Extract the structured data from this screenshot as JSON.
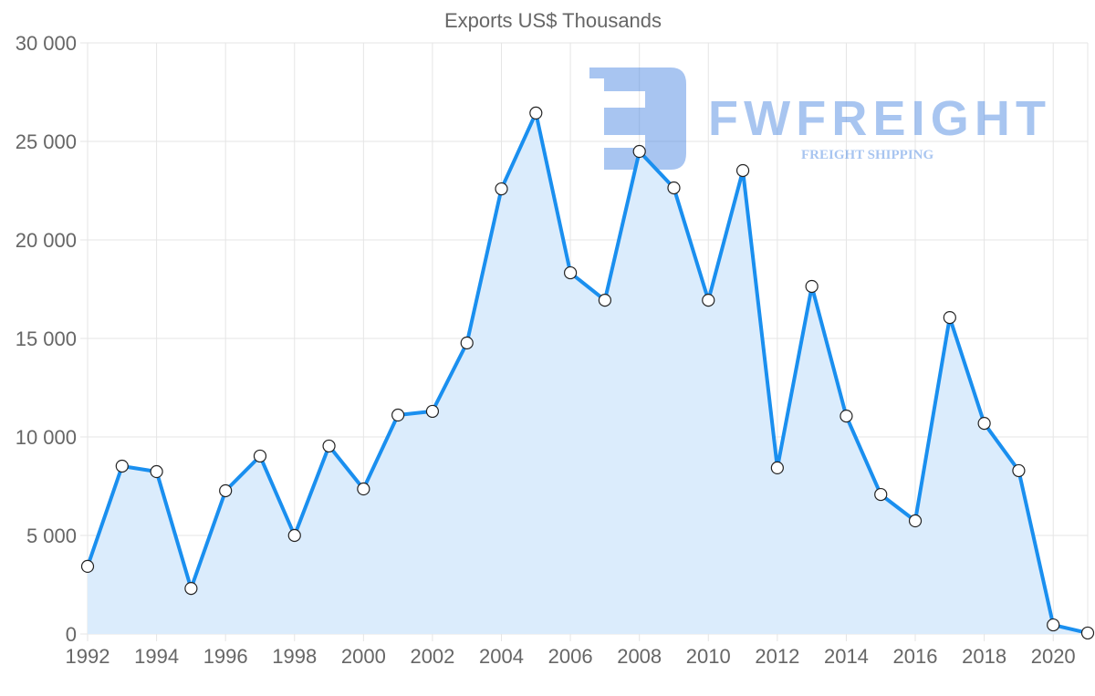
{
  "watermark": {
    "name": "FWFREIGHT",
    "tagline": "FREIGHT SHIPPING"
  },
  "chart_data": {
    "type": "area",
    "title": "Exports US$ Thousands",
    "xlabel": "",
    "ylabel": "",
    "x": [
      1992,
      1993,
      1994,
      1995,
      1996,
      1997,
      1998,
      1999,
      2000,
      2001,
      2002,
      2003,
      2004,
      2005,
      2006,
      2007,
      2008,
      2009,
      2010,
      2011,
      2012,
      2013,
      2014,
      2015,
      2016,
      2017,
      2018,
      2019,
      2020,
      2021
    ],
    "values": [
      3430,
      8520,
      8240,
      2310,
      7270,
      9030,
      5000,
      9540,
      7360,
      11110,
      11300,
      14770,
      22590,
      26440,
      18330,
      16940,
      24490,
      22640,
      16940,
      23520,
      8430,
      17640,
      11060,
      7080,
      5740,
      16060,
      10690,
      8290,
      460,
      50
    ],
    "xtick_labels": [
      "1992",
      "1994",
      "1996",
      "1998",
      "2000",
      "2002",
      "2004",
      "2006",
      "2008",
      "2010",
      "2012",
      "2014",
      "2016",
      "2018",
      "2020"
    ],
    "ytick_labels": [
      "0",
      "5 000",
      "10 000",
      "15 000",
      "20 000",
      "25 000",
      "30 000"
    ],
    "ylim": [
      0,
      30000
    ],
    "grid": true,
    "legend": "none",
    "colors": {
      "line": "#1a8fef",
      "fill": "#dbecfc",
      "grid": "#e5e5e5"
    }
  }
}
